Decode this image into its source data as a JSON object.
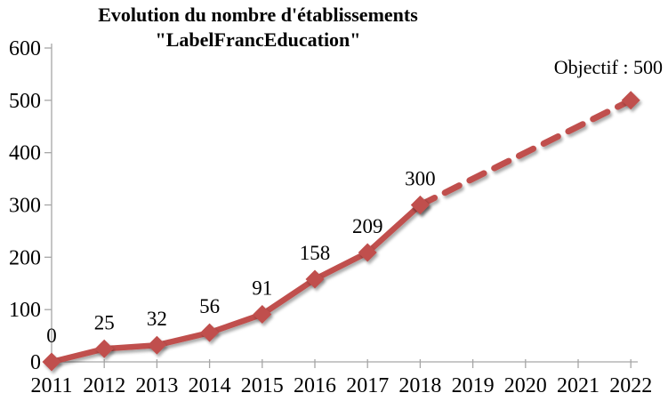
{
  "chart_data": {
    "type": "line",
    "title": [
      "Evolution du nombre d'établissements",
      "\"LabelFrancEducation\""
    ],
    "x_categories": [
      "2011",
      "2012",
      "2013",
      "2014",
      "2015",
      "2016",
      "2017",
      "2018",
      "2019",
      "2020",
      "2021",
      "2022"
    ],
    "y_ticks": [
      0,
      100,
      200,
      300,
      400,
      500,
      600
    ],
    "ylim": [
      0,
      600
    ],
    "series": [
      {
        "name": "etablissements-actuels",
        "style": "solid",
        "x": [
          2011,
          2012,
          2013,
          2014,
          2015,
          2016,
          2017,
          2018
        ],
        "values": [
          0,
          25,
          32,
          56,
          91,
          158,
          209,
          300
        ],
        "show_labels": true
      },
      {
        "name": "projection-objectif",
        "style": "dashed",
        "x": [
          2018,
          2022
        ],
        "values": [
          300,
          500
        ],
        "show_labels": false
      }
    ],
    "annotation": "Objectif : 500",
    "legend": "none",
    "grid": "off",
    "colors": {
      "line": "#C0504D",
      "axis": "#A6A6A6",
      "text": "#000000"
    }
  }
}
